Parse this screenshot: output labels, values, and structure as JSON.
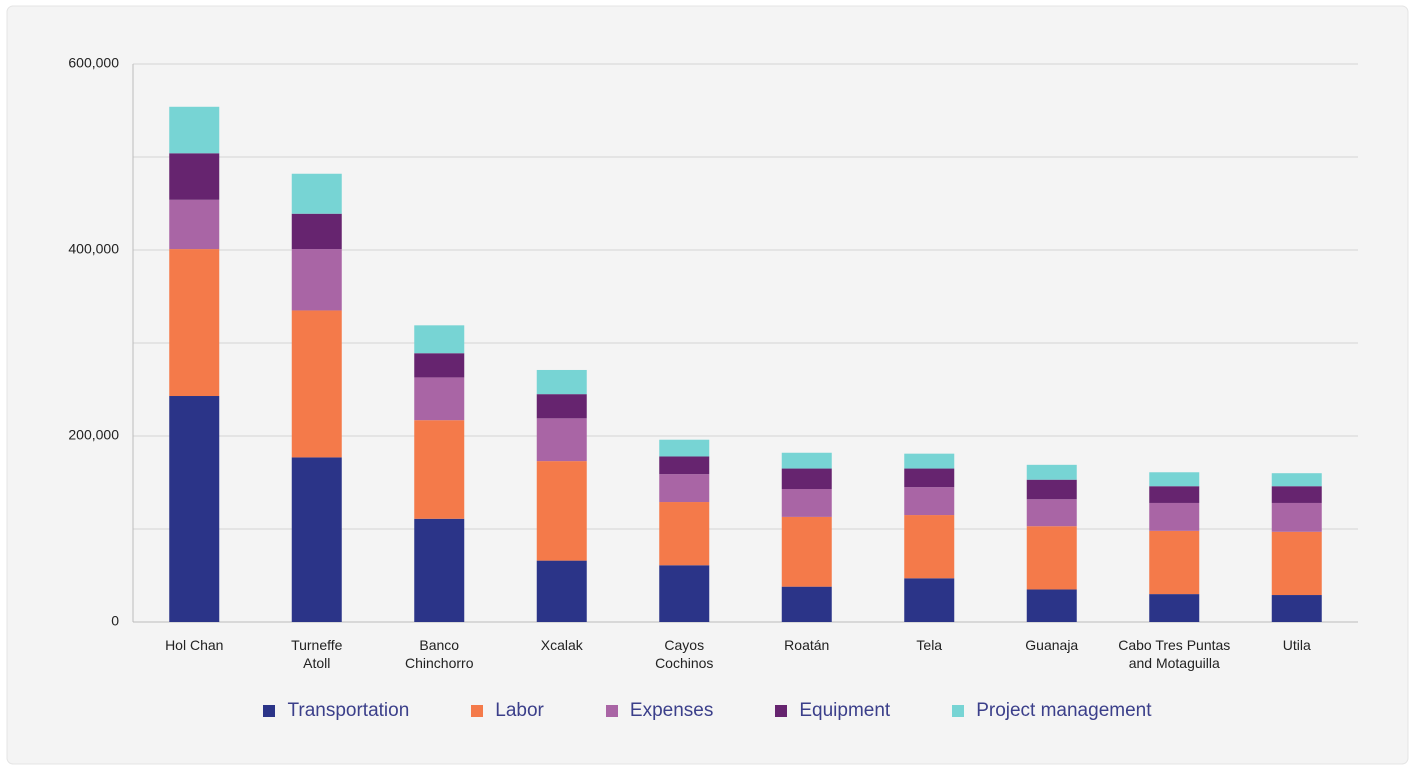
{
  "chart_data": {
    "type": "stacked_bar",
    "categories": [
      "Hol Chan",
      "Turneffe\nAtoll",
      "Banco\nChinchorro",
      "Xcalak",
      "Cayos\nCochinos",
      "Roatán",
      "Tela",
      "Guanaja",
      "Cabo Tres Puntas\nand Motaguilla",
      "Utila"
    ],
    "series": [
      {
        "name": "Transportation",
        "color": "#2b3488",
        "values": [
          243000,
          177000,
          111000,
          66000,
          61000,
          38000,
          47000,
          35000,
          30000,
          29000
        ]
      },
      {
        "name": "Labor",
        "color": "#f47a4a",
        "values": [
          158000,
          158000,
          106000,
          107000,
          68000,
          75000,
          68000,
          68000,
          68000,
          68000
        ]
      },
      {
        "name": "Expenses",
        "color": "#a965a5",
        "values": [
          53000,
          66000,
          46000,
          46000,
          30000,
          30000,
          30000,
          29000,
          30000,
          31000
        ]
      },
      {
        "name": "Equipment",
        "color": "#66246f",
        "values": [
          50000,
          38000,
          26000,
          26000,
          19000,
          22000,
          20000,
          21000,
          18000,
          18000
        ]
      },
      {
        "name": "Project management",
        "color": "#77d4d4",
        "values": [
          50000,
          43000,
          30000,
          26000,
          18000,
          17000,
          16000,
          16000,
          15000,
          14000
        ]
      }
    ],
    "ylim": [
      0,
      600000
    ],
    "yticks": [
      0,
      {
        "value": 200000,
        "label": "200,000"
      },
      {
        "value": 400000,
        "label": "400,000"
      },
      {
        "value": 600000,
        "label": "600,000"
      }
    ],
    "yminor": [
      100000,
      300000,
      500000
    ],
    "grid": true,
    "legend": "bottom"
  }
}
